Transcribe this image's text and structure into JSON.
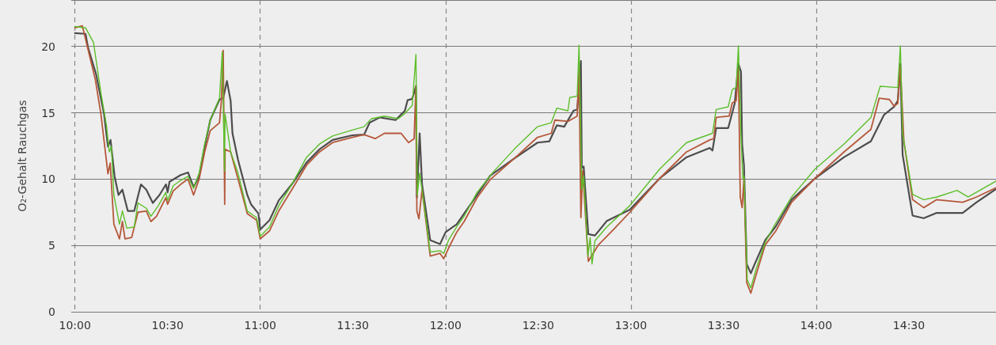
{
  "chart_data": {
    "type": "line",
    "ylabel": "O₂-Gehalt Rauchgas",
    "xlim": [
      9.98,
      14.97
    ],
    "ylim": [
      0,
      23.5
    ],
    "xticks": [
      {
        "value": 10,
        "label": "10:00"
      },
      {
        "value": 10.5,
        "label": "10:30"
      },
      {
        "value": 11,
        "label": "11:00"
      },
      {
        "value": 11.5,
        "label": "11:30"
      },
      {
        "value": 12,
        "label": "12:00"
      },
      {
        "value": 12.5,
        "label": "12:30"
      },
      {
        "value": 13,
        "label": "13:00"
      },
      {
        "value": 13.5,
        "label": "13:30"
      },
      {
        "value": 14,
        "label": "14:00"
      },
      {
        "value": 14.5,
        "label": "14:30"
      }
    ],
    "yticks": [
      0,
      5,
      10,
      15,
      20
    ],
    "grid": true,
    "marker": "none",
    "line_style": "solid",
    "series": [
      {
        "color": "#4d4d4d",
        "x": [
          10.0,
          10.057,
          10.071,
          10.114,
          10.157,
          10.178,
          10.192,
          10.214,
          10.235,
          10.256,
          10.285,
          10.32,
          10.356,
          10.385,
          10.42,
          10.456,
          10.491,
          10.5,
          10.51,
          10.57,
          10.61,
          10.64,
          10.67,
          10.7,
          10.73,
          10.78,
          10.8,
          10.82,
          10.84,
          10.85,
          10.88,
          10.93,
          10.95,
          10.99,
          11.0,
          11.05,
          11.1,
          11.17,
          11.25,
          11.32,
          11.39,
          11.496,
          11.56,
          11.59,
          11.645,
          11.73,
          11.78,
          11.795,
          11.82,
          11.84,
          11.845,
          11.86,
          11.873,
          11.917,
          11.97,
          12.0,
          12.06,
          12.1,
          12.17,
          12.24,
          12.37,
          12.496,
          12.56,
          12.6,
          12.64,
          12.69,
          12.71,
          12.73,
          12.735,
          12.745,
          12.77,
          12.806,
          12.87,
          12.994,
          13.155,
          13.3,
          13.425,
          13.44,
          13.46,
          13.525,
          13.56,
          13.58,
          13.594,
          13.6,
          13.61,
          13.625,
          13.647,
          13.668,
          13.725,
          13.78,
          13.867,
          13.993,
          14.15,
          14.295,
          14.366,
          14.42,
          14.44,
          14.454,
          14.466,
          14.52,
          14.58,
          14.65,
          14.79,
          14.865,
          14.97
        ],
        "values": [
          21.0,
          20.95,
          19.9,
          17.9,
          14.9,
          12.45,
          12.95,
          10.2,
          8.8,
          9.2,
          7.6,
          7.6,
          9.6,
          9.2,
          8.2,
          8.8,
          9.6,
          9.0,
          9.8,
          10.3,
          10.5,
          9.4,
          10.2,
          12.45,
          14.45,
          16.0,
          16.1,
          17.4,
          15.9,
          13.45,
          11.45,
          8.8,
          8.1,
          7.4,
          6.2,
          6.9,
          8.4,
          9.6,
          11.25,
          12.25,
          12.95,
          13.3,
          13.35,
          14.25,
          14.65,
          14.45,
          15.15,
          15.95,
          16.05,
          17.0,
          8.6,
          13.45,
          9.6,
          5.4,
          5.1,
          6.0,
          6.6,
          7.4,
          8.8,
          10.25,
          11.55,
          12.75,
          12.85,
          14.05,
          13.95,
          15.15,
          15.25,
          18.9,
          10.85,
          10.95,
          5.85,
          5.75,
          6.85,
          7.7,
          10.05,
          11.65,
          12.35,
          12.15,
          13.85,
          13.85,
          15.7,
          18.7,
          18.1,
          12.65,
          11.05,
          3.6,
          2.9,
          3.6,
          5.4,
          6.4,
          8.45,
          10.05,
          11.65,
          12.85,
          14.85,
          15.45,
          15.9,
          18.7,
          11.85,
          7.25,
          7.05,
          7.45,
          7.45,
          8.25,
          9.25
        ]
      },
      {
        "color": "#b5583a",
        "x": [
          10.0,
          10.04,
          10.07,
          10.11,
          10.14,
          10.178,
          10.19,
          10.21,
          10.24,
          10.256,
          10.27,
          10.306,
          10.34,
          10.385,
          10.41,
          10.44,
          10.49,
          10.5,
          10.53,
          10.57,
          10.61,
          10.64,
          10.67,
          10.7,
          10.73,
          10.78,
          10.79,
          10.8,
          10.808,
          10.81,
          10.84,
          10.88,
          10.93,
          10.98,
          11.0,
          11.05,
          11.1,
          11.17,
          11.25,
          11.32,
          11.39,
          11.496,
          11.56,
          11.62,
          11.67,
          11.76,
          11.8,
          11.83,
          11.84,
          11.845,
          11.856,
          11.873,
          11.917,
          11.97,
          11.99,
          12.016,
          12.06,
          12.1,
          12.17,
          12.24,
          12.37,
          12.496,
          12.57,
          12.59,
          12.66,
          12.71,
          12.72,
          12.73,
          12.74,
          12.77,
          12.825,
          12.91,
          12.994,
          13.155,
          13.3,
          13.425,
          13.447,
          13.46,
          13.53,
          13.547,
          13.568,
          13.58,
          13.59,
          13.6,
          13.61,
          13.625,
          13.647,
          13.68,
          13.725,
          13.78,
          13.867,
          13.993,
          14.15,
          14.295,
          14.34,
          14.395,
          14.42,
          14.44,
          14.454,
          14.473,
          14.52,
          14.58,
          14.65,
          14.79,
          14.865,
          14.97
        ],
        "values": [
          21.4,
          21.55,
          19.8,
          17.5,
          14.9,
          10.4,
          11.2,
          6.6,
          5.5,
          6.8,
          5.5,
          5.6,
          7.5,
          7.6,
          6.8,
          7.2,
          8.6,
          8.1,
          9.1,
          9.6,
          10.0,
          8.8,
          10.0,
          12.05,
          13.65,
          14.25,
          15.9,
          19.7,
          8.1,
          12.25,
          12.05,
          10.0,
          7.4,
          6.9,
          5.5,
          6.1,
          7.6,
          9.2,
          11.05,
          12.05,
          12.75,
          13.15,
          13.35,
          13.05,
          13.45,
          13.45,
          12.75,
          13.05,
          17.05,
          7.6,
          7.0,
          9.2,
          4.2,
          4.4,
          4.0,
          4.8,
          6.0,
          6.8,
          8.6,
          9.95,
          11.55,
          13.15,
          13.45,
          14.45,
          14.35,
          14.75,
          18.3,
          7.1,
          10.65,
          3.8,
          5.05,
          6.25,
          7.5,
          10.05,
          12.05,
          12.95,
          13.05,
          14.65,
          14.75,
          15.75,
          15.9,
          18.3,
          8.65,
          7.85,
          10.1,
          2.2,
          1.4,
          3.0,
          5.05,
          6.05,
          8.25,
          10.05,
          12.05,
          13.75,
          16.1,
          16.0,
          15.5,
          15.7,
          18.5,
          12.85,
          8.45,
          7.85,
          8.45,
          8.25,
          8.65,
          9.35
        ]
      },
      {
        "color": "#5cbf2a",
        "x": [
          10.0,
          10.057,
          10.1,
          10.14,
          10.17,
          10.185,
          10.197,
          10.21,
          10.24,
          10.256,
          10.28,
          10.32,
          10.34,
          10.385,
          10.41,
          10.45,
          10.49,
          10.5,
          10.53,
          10.57,
          10.61,
          10.64,
          10.67,
          10.7,
          10.73,
          10.78,
          10.795,
          10.807,
          10.81,
          10.84,
          10.88,
          10.93,
          10.98,
          11.0,
          11.05,
          11.1,
          11.17,
          11.25,
          11.32,
          11.39,
          11.496,
          11.56,
          11.6,
          11.67,
          11.745,
          11.78,
          11.82,
          11.84,
          11.847,
          11.86,
          11.873,
          11.917,
          11.97,
          11.99,
          12.016,
          12.06,
          12.1,
          12.17,
          12.258,
          12.37,
          12.496,
          12.57,
          12.6,
          12.66,
          12.67,
          12.71,
          12.72,
          12.735,
          12.745,
          12.768,
          12.78,
          12.79,
          12.806,
          12.87,
          12.994,
          13.155,
          13.3,
          13.44,
          13.46,
          13.525,
          13.547,
          13.568,
          13.58,
          13.594,
          13.604,
          13.61,
          13.628,
          13.647,
          13.675,
          13.725,
          13.78,
          13.867,
          13.993,
          14.15,
          14.295,
          14.345,
          14.44,
          14.454,
          14.466,
          14.52,
          14.58,
          14.65,
          14.76,
          14.82,
          14.97
        ],
        "values": [
          21.5,
          21.4,
          20.3,
          16.5,
          14.05,
          12.05,
          12.45,
          8.8,
          6.6,
          7.6,
          6.3,
          6.4,
          8.2,
          7.8,
          7.2,
          8.0,
          9.0,
          8.4,
          9.5,
          9.9,
          10.2,
          9.3,
          10.45,
          12.65,
          14.45,
          16.1,
          19.6,
          10.6,
          14.9,
          12.05,
          10.45,
          7.6,
          7.1,
          5.7,
          6.4,
          8.0,
          9.6,
          11.65,
          12.65,
          13.25,
          13.7,
          13.95,
          14.55,
          14.75,
          14.55,
          14.95,
          15.55,
          19.4,
          8.8,
          10.45,
          9.2,
          4.5,
          4.6,
          4.4,
          5.4,
          6.4,
          7.2,
          9.0,
          10.55,
          12.25,
          13.95,
          14.25,
          15.35,
          15.15,
          16.15,
          16.25,
          20.1,
          9.2,
          10.25,
          4.2,
          5.6,
          3.6,
          5.35,
          6.4,
          8.0,
          10.75,
          12.75,
          13.45,
          15.25,
          15.45,
          16.75,
          16.9,
          20.05,
          13.25,
          10.05,
          10.25,
          2.4,
          1.8,
          3.2,
          5.25,
          6.65,
          8.65,
          10.75,
          12.65,
          14.65,
          17.0,
          16.9,
          20.05,
          13.45,
          8.85,
          8.45,
          8.65,
          9.15,
          8.65,
          9.85
        ]
      }
    ]
  }
}
